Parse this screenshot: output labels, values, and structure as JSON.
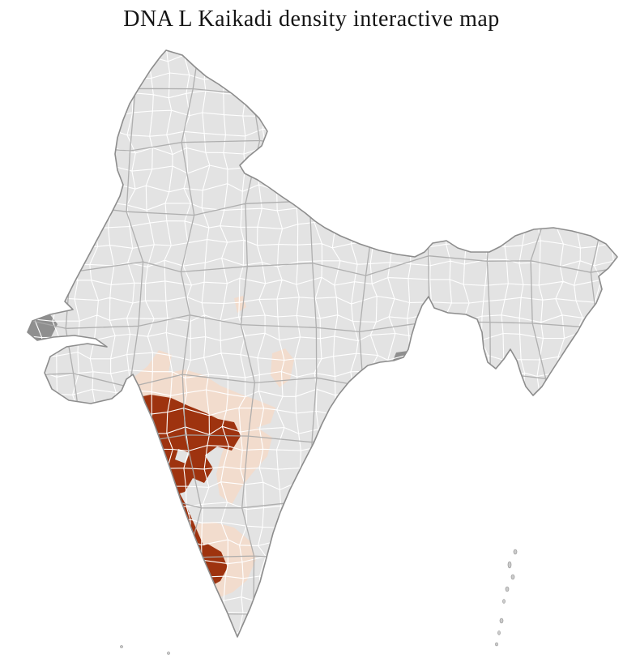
{
  "title": "DNA L Kaikadi density interactive map",
  "map": {
    "name": "india-district-choropleth",
    "colors": {
      "background": "#ffffff",
      "land": "#e3e3e3",
      "district_border": "#ffffff",
      "state_border": "#a9a9a9",
      "outline": "#8d8d8d",
      "high_density": "#9e330f",
      "low_density": "#f2dccd",
      "dark_gray_district": "#8f8f8f",
      "island": "#cccccc"
    }
  }
}
